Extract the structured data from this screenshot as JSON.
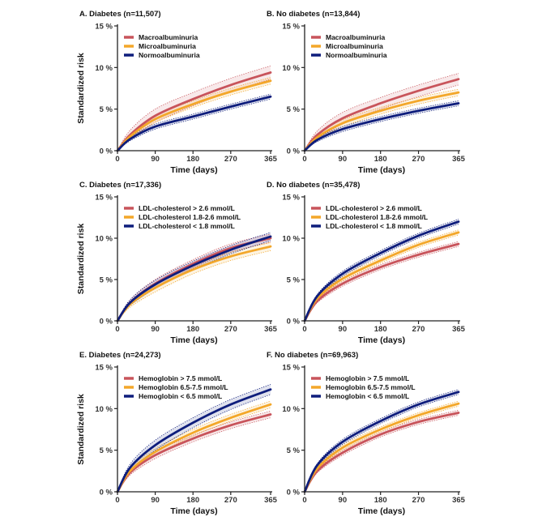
{
  "figure": {
    "x_ticks": [
      "0",
      "90",
      "180",
      "270",
      "365"
    ],
    "y_ticks": [
      "0 %",
      "5 %",
      "10 %",
      "15 %"
    ],
    "xlabel": "Time (days)",
    "ylabel": "Standardized risk"
  },
  "colors": {
    "high": "#c8545b",
    "mid": "#f3a72a",
    "low": "#0e1d7c"
  },
  "chart_data": [
    {
      "id": "A",
      "title": "A. Diabetes (n=11,507)",
      "type": "line",
      "xlabel": "Time (days)",
      "ylabel": "Standardized risk",
      "xlim": [
        0,
        365
      ],
      "ylim": [
        0,
        15
      ],
      "x_ticks": [
        0,
        90,
        180,
        270,
        365
      ],
      "y_ticks": [
        0,
        5,
        10,
        15
      ],
      "x": [
        0,
        30,
        90,
        180,
        270,
        365
      ],
      "series": [
        {
          "name": "Macroalbuminuria",
          "color": "#c8545b",
          "values": [
            0,
            1.9,
            4.2,
            6.2,
            7.9,
            9.4
          ],
          "ci": 0.8
        },
        {
          "name": "Microalbuminuria",
          "color": "#f3a72a",
          "values": [
            0,
            1.7,
            3.8,
            5.6,
            7.1,
            8.4
          ],
          "ci": 0.4
        },
        {
          "name": "Normoalbuminuria",
          "color": "#0e1d7c",
          "values": [
            0,
            1.4,
            2.9,
            4.1,
            5.3,
            6.5
          ],
          "ci": 0.3
        }
      ]
    },
    {
      "id": "B",
      "title": "B. No diabetes (n=13,844)",
      "type": "line",
      "xlabel": "Time (days)",
      "ylabel": "Standardized risk",
      "xlim": [
        0,
        365
      ],
      "ylim": [
        0,
        15
      ],
      "x_ticks": [
        0,
        90,
        180,
        270,
        365
      ],
      "y_ticks": [
        0,
        5,
        10,
        15
      ],
      "x": [
        0,
        30,
        90,
        180,
        270,
        365
      ],
      "series": [
        {
          "name": "Macroalbuminuria",
          "color": "#c8545b",
          "values": [
            0,
            1.9,
            3.9,
            5.7,
            7.2,
            8.6
          ],
          "ci": 0.7
        },
        {
          "name": "Microalbuminuria",
          "color": "#f3a72a",
          "values": [
            0,
            1.6,
            3.3,
            4.8,
            6.0,
            7.0
          ],
          "ci": 0.4
        },
        {
          "name": "Normoalbuminuria",
          "color": "#0e1d7c",
          "values": [
            0,
            1.3,
            2.6,
            3.8,
            4.8,
            5.7
          ],
          "ci": 0.3
        }
      ]
    },
    {
      "id": "C",
      "title": "C. Diabetes (n=17,336)",
      "type": "line",
      "xlabel": "Time (days)",
      "ylabel": "Standardized risk",
      "xlim": [
        0,
        365
      ],
      "ylim": [
        0,
        15
      ],
      "x_ticks": [
        0,
        90,
        180,
        270,
        365
      ],
      "y_ticks": [
        0,
        5,
        10,
        15
      ],
      "x": [
        0,
        30,
        90,
        180,
        270,
        365
      ],
      "series": [
        {
          "name": "LDL-cholesterol > 2.6 mmol/L",
          "color": "#c8545b",
          "values": [
            0,
            2.2,
            4.5,
            6.9,
            8.8,
            10.0
          ],
          "ci": 0.5
        },
        {
          "name": "LDL-cholesterol 1.8-2.6 mmol/L",
          "color": "#f3a72a",
          "values": [
            0,
            2.0,
            4.0,
            6.2,
            7.8,
            9.0
          ],
          "ci": 0.5
        },
        {
          "name": "LDL-cholesterol < 1.8 mmol/L",
          "color": "#0e1d7c",
          "values": [
            0,
            2.2,
            4.4,
            6.7,
            8.6,
            10.2
          ],
          "ci": 0.5
        }
      ]
    },
    {
      "id": "D",
      "title": "D. No diabetes (n=35,478)",
      "type": "line",
      "xlabel": "Time (days)",
      "ylabel": "Standardized risk",
      "xlim": [
        0,
        365
      ],
      "ylim": [
        0,
        15
      ],
      "x_ticks": [
        0,
        90,
        180,
        270,
        365
      ],
      "y_ticks": [
        0,
        5,
        10,
        15
      ],
      "x": [
        0,
        30,
        90,
        180,
        270,
        365
      ],
      "series": [
        {
          "name": "LDL-cholesterol > 2.6 mmol/L",
          "color": "#c8545b",
          "values": [
            0,
            2.4,
            4.5,
            6.5,
            8.0,
            9.3
          ],
          "ci": 0.3
        },
        {
          "name": "LDL-cholesterol 1.8-2.6 mmol/L",
          "color": "#f3a72a",
          "values": [
            0,
            2.7,
            5.1,
            7.3,
            9.2,
            10.7
          ],
          "ci": 0.3
        },
        {
          "name": "LDL-cholesterol < 1.8 mmol/L",
          "color": "#0e1d7c",
          "values": [
            0,
            3.0,
            5.7,
            8.2,
            10.3,
            12.0
          ],
          "ci": 0.3
        }
      ]
    },
    {
      "id": "E",
      "title": "E. Diabetes (n=24,273)",
      "type": "line",
      "xlabel": "Time (days)",
      "ylabel": "Standardized risk",
      "xlim": [
        0,
        365
      ],
      "ylim": [
        0,
        15
      ],
      "x_ticks": [
        0,
        90,
        180,
        270,
        365
      ],
      "y_ticks": [
        0,
        5,
        10,
        15
      ],
      "x": [
        0,
        30,
        90,
        180,
        270,
        365
      ],
      "series": [
        {
          "name": "Hemoglobin > 7.5 mmol/L",
          "color": "#c8545b",
          "values": [
            0,
            2.3,
            4.4,
            6.4,
            8.0,
            9.3
          ],
          "ci": 0.4
        },
        {
          "name": "Hemoglobin 6.5-7.5 mmol/L",
          "color": "#f3a72a",
          "values": [
            0,
            2.5,
            4.8,
            7.1,
            8.9,
            10.5
          ],
          "ci": 0.4
        },
        {
          "name": "Hemoglobin < 6.5 mmol/L",
          "color": "#0e1d7c",
          "values": [
            0,
            2.9,
            5.6,
            8.3,
            10.5,
            12.3
          ],
          "ci": 0.6
        }
      ]
    },
    {
      "id": "F",
      "title": "F. No diabetes (n=69,963)",
      "type": "line",
      "xlabel": "Time (days)",
      "ylabel": "Standardized risk",
      "xlim": [
        0,
        365
      ],
      "ylim": [
        0,
        15
      ],
      "x_ticks": [
        0,
        90,
        180,
        270,
        365
      ],
      "y_ticks": [
        0,
        5,
        10,
        15
      ],
      "x": [
        0,
        30,
        90,
        180,
        270,
        365
      ],
      "series": [
        {
          "name": "Hemoglobin > 7.5 mmol/L",
          "color": "#c8545b",
          "values": [
            0,
            2.5,
            4.7,
            6.9,
            8.4,
            9.5
          ],
          "ci": 0.3
        },
        {
          "name": "Hemoglobin 6.5-7.5 mmol/L",
          "color": "#f3a72a",
          "values": [
            0,
            2.8,
            5.3,
            7.5,
            9.2,
            10.6
          ],
          "ci": 0.3
        },
        {
          "name": "Hemoglobin < 6.5 mmol/L",
          "color": "#0e1d7c",
          "values": [
            0,
            3.2,
            6.0,
            8.5,
            10.5,
            12.0
          ],
          "ci": 0.3
        }
      ]
    }
  ]
}
